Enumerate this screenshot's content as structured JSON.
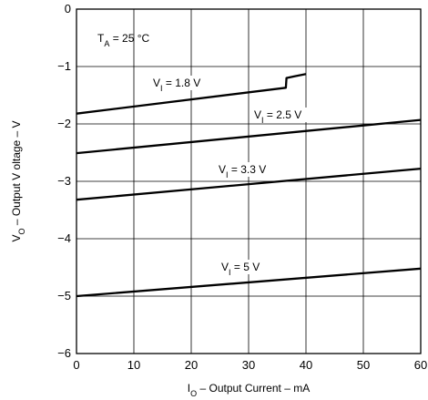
{
  "chart_data": {
    "type": "line",
    "xlabel": {
      "main": "I",
      "sub": "O",
      "rest": " – Output Current – mA"
    },
    "ylabel": {
      "main": "V",
      "sub": "O",
      "rest": " – Output V  oltage – V"
    },
    "annotation": {
      "main": "T",
      "sub": "A",
      "rest": " = 25 °C"
    },
    "xlim": [
      0,
      60
    ],
    "ylim": [
      -6,
      0
    ],
    "xticks": [
      "0",
      "10",
      "20",
      "30",
      "40",
      "50",
      "60"
    ],
    "yticks": [
      "0",
      "−1",
      "−2",
      "−3",
      "−4",
      "−5",
      "−6"
    ],
    "grid": true,
    "series": [
      {
        "name": "V_I = 1.8 V",
        "label": {
          "main": "V",
          "sub": "I",
          "rest": " = 1.8 V"
        },
        "x": [
          0,
          36.5,
          36.6,
          38,
          40
        ],
        "y": [
          -1.82,
          -1.37,
          -1.2,
          -1.17,
          -1.13
        ]
      },
      {
        "name": "V_I = 2.5 V",
        "label": {
          "main": "V",
          "sub": "I",
          "rest": " = 2.5 V"
        },
        "x": [
          0,
          60
        ],
        "y": [
          -2.51,
          -1.93
        ]
      },
      {
        "name": "V_I = 3.3 V",
        "label": {
          "main": "V",
          "sub": "I",
          "rest": " = 3.3 V"
        },
        "x": [
          0,
          60
        ],
        "y": [
          -3.32,
          -2.78
        ]
      },
      {
        "name": "V_I = 5 V",
        "label": {
          "main": "V",
          "sub": "I",
          "rest": " = 5 V"
        },
        "x": [
          0,
          60
        ],
        "y": [
          -5.0,
          -4.52
        ]
      }
    ]
  }
}
